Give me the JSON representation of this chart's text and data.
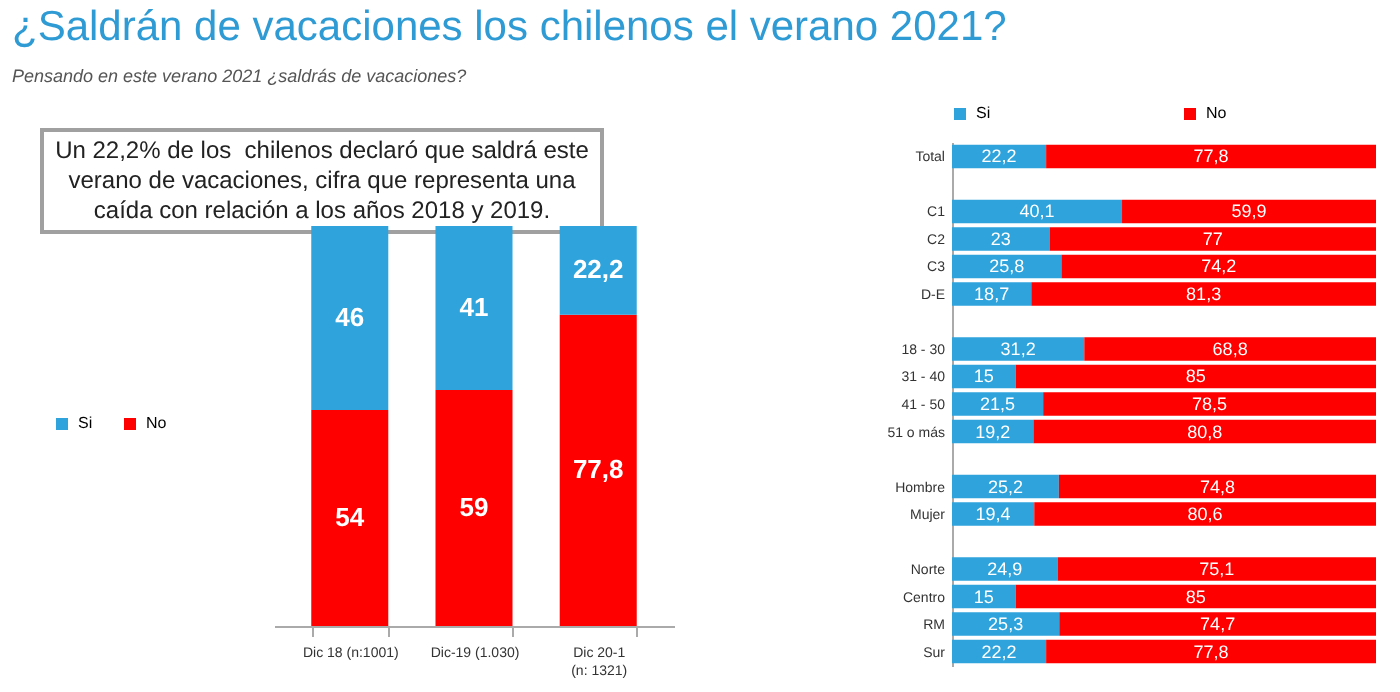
{
  "chart_data": [
    {
      "type": "bar",
      "stacked": true,
      "title": "¿Saldrán de vacaciones los chilenos el verano 2021?",
      "subtitle": "Pensando en este verano 2021 ¿saldrás de vacaciones?",
      "annotations": [
        "Un 22,2% de los  chilenos declaró que saldrá este verano de vacaciones, cifra que representa una caída con relación a los años 2018 y 2019."
      ],
      "categories": [
        "Dic 18 (n:1001)",
        "Dic-19 (1.030)",
        "Dic 20-1 (n: 1321)"
      ],
      "legend": "left",
      "series": [
        {
          "name": "No",
          "color": "#ff0000",
          "values": [
            54,
            59,
            77.8
          ],
          "value_labels": [
            "54",
            "59",
            "77,8"
          ]
        },
        {
          "name": "Si",
          "color": "#2ea3dc",
          "values": [
            46,
            41,
            22.2
          ],
          "value_labels": [
            "46",
            "41",
            "22,2"
          ]
        }
      ]
    },
    {
      "type": "bar",
      "stacked": true,
      "orientation": "horizontal",
      "legend": "top",
      "categories": [
        "Total",
        null,
        "C1",
        "C2",
        "C3",
        "D-E",
        null,
        "18 - 30",
        "31 - 40",
        "41 - 50",
        "51 o más",
        null,
        "Hombre",
        "Mujer",
        null,
        "Norte",
        "Centro",
        "RM",
        "Sur"
      ],
      "series": [
        {
          "name": "Si",
          "color": "#2ea3dc",
          "values": [
            22.2,
            null,
            40.1,
            23,
            25.8,
            18.7,
            null,
            31.2,
            15,
            21.5,
            19.2,
            null,
            25.2,
            19.4,
            null,
            24.9,
            15,
            25.3,
            22.2
          ],
          "value_labels": [
            "22,2",
            null,
            "40,1",
            "23",
            "25,8",
            "18,7",
            null,
            "31,2",
            "15",
            "21,5",
            "19,2",
            null,
            "25,2",
            "19,4",
            null,
            "24,9",
            "15",
            "25,3",
            "22,2"
          ]
        },
        {
          "name": "No",
          "color": "#ff0000",
          "values": [
            77.8,
            null,
            59.9,
            77,
            74.2,
            81.3,
            null,
            68.8,
            85,
            78.5,
            80.8,
            null,
            74.8,
            80.6,
            null,
            75.1,
            85,
            74.7,
            77.8
          ],
          "value_labels": [
            "77,8",
            null,
            "59,9",
            "77",
            "74,2",
            "81,3",
            null,
            "68,8",
            "85",
            "78,5",
            "80,8",
            null,
            "74,8",
            "80,6",
            null,
            "75,1",
            "85",
            "74,7",
            "77,8"
          ]
        }
      ]
    }
  ]
}
